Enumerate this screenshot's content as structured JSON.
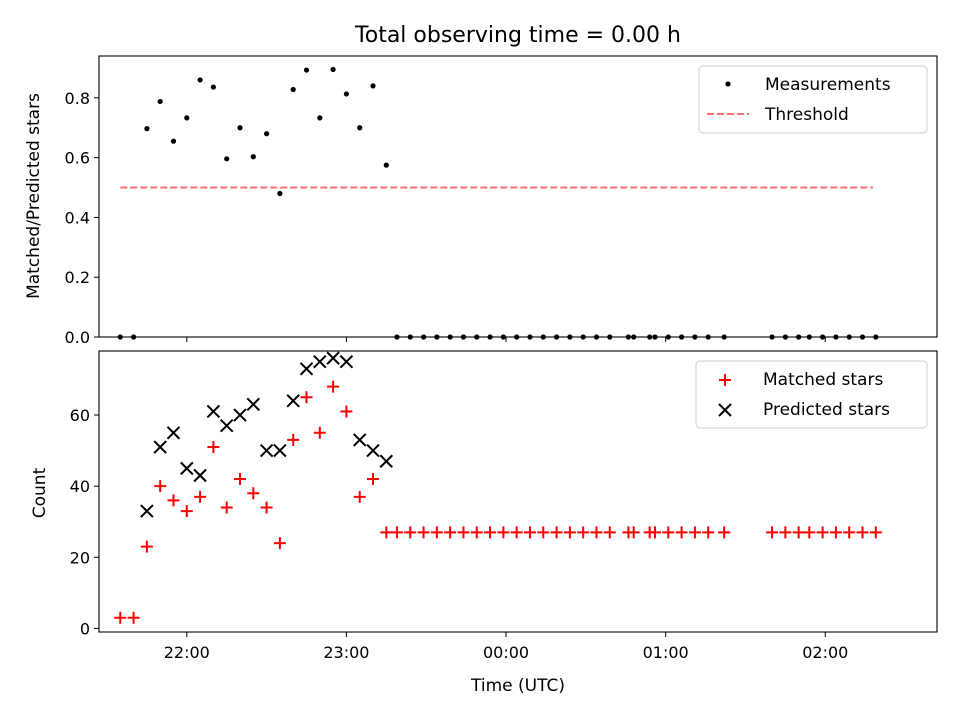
{
  "chart_data": [
    {
      "type": "scatter",
      "title": "Total observing time = 0.00 h",
      "ylabel": "Matched/Predicted stars",
      "xlabel": "",
      "x_axis": "time",
      "xlim": [
        "21:27",
        "02:42"
      ],
      "ylim": [
        0,
        0.94
      ],
      "yticks": [
        "0.0",
        "0.2",
        "0.4",
        "0.6",
        "0.8"
      ],
      "legend": "upper right",
      "series": [
        {
          "name": "Measurements",
          "style": "dot",
          "color": "#000000",
          "points": [
            [
              "21:35",
              0.0
            ],
            [
              "21:40",
              0.0
            ],
            [
              "21:45",
              0.697
            ],
            [
              "21:50",
              0.788
            ],
            [
              "21:55",
              0.655
            ],
            [
              "22:00",
              0.733
            ],
            [
              "22:05",
              0.86
            ],
            [
              "22:10",
              0.836
            ],
            [
              "22:15",
              0.596
            ],
            [
              "22:20",
              0.7
            ],
            [
              "22:25",
              0.603
            ],
            [
              "22:30",
              0.68
            ],
            [
              "22:35",
              0.48
            ],
            [
              "22:40",
              0.828
            ],
            [
              "22:45",
              0.893
            ],
            [
              "22:50",
              0.733
            ],
            [
              "22:55",
              0.895
            ],
            [
              "23:00",
              0.813
            ],
            [
              "23:05",
              0.7
            ],
            [
              "23:10",
              0.84
            ],
            [
              "23:15",
              0.575
            ],
            [
              "23:19",
              0.0
            ],
            [
              "23:24",
              0.0
            ],
            [
              "23:29",
              0.0
            ],
            [
              "23:34",
              0.0
            ],
            [
              "23:39",
              0.0
            ],
            [
              "23:44",
              0.0
            ],
            [
              "23:49",
              0.0
            ],
            [
              "23:54",
              0.0
            ],
            [
              "23:59",
              0.0
            ],
            [
              "00:04",
              0.0
            ],
            [
              "00:09",
              0.0
            ],
            [
              "00:14",
              0.0
            ],
            [
              "00:19",
              0.0
            ],
            [
              "00:24",
              0.0
            ],
            [
              "00:29",
              0.0
            ],
            [
              "00:34",
              0.0
            ],
            [
              "00:39",
              0.0
            ],
            [
              "00:46",
              0.0
            ],
            [
              "00:48",
              0.0
            ],
            [
              "00:54",
              0.0
            ],
            [
              "00:56",
              0.0
            ],
            [
              "01:01",
              0.0
            ],
            [
              "01:06",
              0.0
            ],
            [
              "01:11",
              0.0
            ],
            [
              "01:16",
              0.0
            ],
            [
              "01:22",
              0.0
            ],
            [
              "01:40",
              0.0
            ],
            [
              "01:45",
              0.0
            ],
            [
              "01:50",
              0.0
            ],
            [
              "01:54",
              0.0
            ],
            [
              "01:59",
              0.0
            ],
            [
              "02:04",
              0.0
            ],
            [
              "02:09",
              0.0
            ],
            [
              "02:14",
              0.0
            ],
            [
              "02:19",
              0.0
            ]
          ]
        },
        {
          "name": "Threshold",
          "style": "dashed-line",
          "color": "#ff7070",
          "points": [
            [
              "21:35",
              0.5
            ],
            [
              "02:18",
              0.5
            ]
          ]
        }
      ]
    },
    {
      "type": "scatter",
      "title": "",
      "xlabel": "Time (UTC)",
      "ylabel": "Count",
      "x_axis": "time",
      "xlim": [
        "21:27",
        "02:42"
      ],
      "ylim": [
        -1,
        78
      ],
      "xticks": [
        "22:00",
        "23:00",
        "00:00",
        "01:00",
        "02:00"
      ],
      "yticks": [
        "0",
        "20",
        "40",
        "60"
      ],
      "legend": "upper right",
      "series": [
        {
          "name": "Matched stars",
          "style": "plus",
          "color": "#ff0000",
          "points": [
            [
              "21:35",
              3
            ],
            [
              "21:40",
              3
            ],
            [
              "21:45",
              23
            ],
            [
              "21:50",
              40
            ],
            [
              "21:55",
              36
            ],
            [
              "22:00",
              33
            ],
            [
              "22:05",
              37
            ],
            [
              "22:10",
              51
            ],
            [
              "22:15",
              34
            ],
            [
              "22:20",
              42
            ],
            [
              "22:25",
              38
            ],
            [
              "22:30",
              34
            ],
            [
              "22:35",
              24
            ],
            [
              "22:40",
              53
            ],
            [
              "22:45",
              65
            ],
            [
              "22:50",
              55
            ],
            [
              "22:55",
              68
            ],
            [
              "23:00",
              61
            ],
            [
              "23:05",
              37
            ],
            [
              "23:10",
              42
            ],
            [
              "23:15",
              27
            ],
            [
              "23:19",
              27
            ],
            [
              "23:24",
              27
            ],
            [
              "23:29",
              27
            ],
            [
              "23:34",
              27
            ],
            [
              "23:39",
              27
            ],
            [
              "23:44",
              27
            ],
            [
              "23:49",
              27
            ],
            [
              "23:54",
              27
            ],
            [
              "23:59",
              27
            ],
            [
              "00:04",
              27
            ],
            [
              "00:09",
              27
            ],
            [
              "00:14",
              27
            ],
            [
              "00:19",
              27
            ],
            [
              "00:24",
              27
            ],
            [
              "00:29",
              27
            ],
            [
              "00:34",
              27
            ],
            [
              "00:39",
              27
            ],
            [
              "00:46",
              27
            ],
            [
              "00:48",
              27
            ],
            [
              "00:54",
              27
            ],
            [
              "00:56",
              27
            ],
            [
              "01:01",
              27
            ],
            [
              "01:06",
              27
            ],
            [
              "01:11",
              27
            ],
            [
              "01:16",
              27
            ],
            [
              "01:22",
              27
            ],
            [
              "01:40",
              27
            ],
            [
              "01:45",
              27
            ],
            [
              "01:50",
              27
            ],
            [
              "01:54",
              27
            ],
            [
              "01:59",
              27
            ],
            [
              "02:04",
              27
            ],
            [
              "02:09",
              27
            ],
            [
              "02:14",
              27
            ],
            [
              "02:19",
              27
            ]
          ]
        },
        {
          "name": "Predicted stars",
          "style": "x",
          "color": "#000000",
          "points": [
            [
              "21:45",
              33
            ],
            [
              "21:50",
              51
            ],
            [
              "21:55",
              55
            ],
            [
              "22:00",
              45
            ],
            [
              "22:05",
              43
            ],
            [
              "22:10",
              61
            ],
            [
              "22:15",
              57
            ],
            [
              "22:20",
              60
            ],
            [
              "22:25",
              63
            ],
            [
              "22:30",
              50
            ],
            [
              "22:35",
              50
            ],
            [
              "22:40",
              64
            ],
            [
              "22:45",
              73
            ],
            [
              "22:50",
              75
            ],
            [
              "22:55",
              76
            ],
            [
              "23:00",
              75
            ],
            [
              "23:05",
              53
            ],
            [
              "23:10",
              50
            ],
            [
              "23:15",
              47
            ]
          ]
        }
      ]
    }
  ]
}
